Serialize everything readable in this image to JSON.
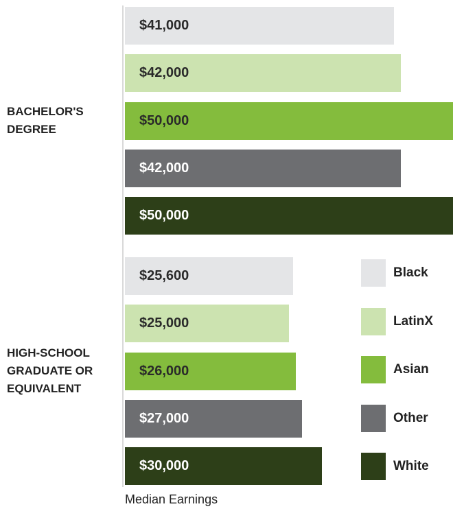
{
  "chart_data": {
    "type": "bar",
    "orientation": "horizontal",
    "categories": [
      "BACHELOR'S DEGREE",
      "HIGH-SCHOOL GRADUATE OR EQUIVALENT"
    ],
    "xlabel": "Median Earnings",
    "xlim": [
      0,
      50000
    ],
    "series": [
      {
        "name": "Black",
        "color": "#e4e5e7",
        "values": [
          41000,
          25600
        ],
        "value_labels": [
          "$41,000",
          "$25,600"
        ]
      },
      {
        "name": "LatinX",
        "color": "#cce3b0",
        "values": [
          42000,
          25000
        ],
        "value_labels": [
          "$42,000",
          "$25,000"
        ]
      },
      {
        "name": "Asian",
        "color": "#84bc3d",
        "values": [
          50000,
          26000
        ],
        "value_labels": [
          "$50,000",
          "$26,000"
        ]
      },
      {
        "name": "Other",
        "color": "#6d6e71",
        "values": [
          42000,
          27000
        ],
        "value_labels": [
          "$42,000",
          "$27,000"
        ]
      },
      {
        "name": "White",
        "color": "#2d3f18",
        "values": [
          50000,
          30000
        ],
        "value_labels": [
          "$50,000",
          "$30,000"
        ]
      }
    ],
    "legend": "right"
  }
}
